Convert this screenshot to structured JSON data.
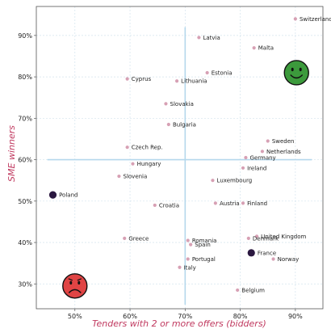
{
  "chart_data": {
    "type": "scatter",
    "xlabel": "Tenders with 2 or more offers (bidders)",
    "ylabel": "SME winners",
    "xlim": [
      43,
      95
    ],
    "ylim": [
      24,
      97
    ],
    "x_ticks": [
      50,
      60,
      70,
      80,
      90
    ],
    "y_ticks": [
      30,
      40,
      50,
      60,
      70,
      80,
      90
    ],
    "tick_suffix": "%",
    "grid": true,
    "reference_lines": {
      "x": 70,
      "y": 60
    },
    "colors": {
      "default": "#d7a0b4",
      "highlight": "#2b1840",
      "reference": "#b5d8ec",
      "good_face": "#3c9a3c",
      "bad_face": "#e04444",
      "accent": "#c0395f"
    },
    "points": [
      {
        "name": "Switzerland",
        "x": 90,
        "y": 94
      },
      {
        "name": "Latvia",
        "x": 72.5,
        "y": 89.5
      },
      {
        "name": "Malta",
        "x": 82.5,
        "y": 87
      },
      {
        "name": "Estonia",
        "x": 74,
        "y": 81
      },
      {
        "name": "Cyprus",
        "x": 59.5,
        "y": 79.5
      },
      {
        "name": "Lithuania",
        "x": 68.5,
        "y": 79
      },
      {
        "name": "Slovakia",
        "x": 66.5,
        "y": 73.5
      },
      {
        "name": "Bulgaria",
        "x": 67,
        "y": 68.5
      },
      {
        "name": "Sweden",
        "x": 85,
        "y": 64.5
      },
      {
        "name": "Czech Rep.",
        "x": 59.5,
        "y": 63
      },
      {
        "name": "Netherlands",
        "x": 84,
        "y": 62
      },
      {
        "name": "Germany",
        "x": 81,
        "y": 60.5
      },
      {
        "name": "Hungary",
        "x": 60.5,
        "y": 59
      },
      {
        "name": "Ireland",
        "x": 80.5,
        "y": 58
      },
      {
        "name": "Slovenia",
        "x": 58,
        "y": 56
      },
      {
        "name": "Luxembourg",
        "x": 75,
        "y": 55
      },
      {
        "name": "Poland",
        "x": 46,
        "y": 51.5,
        "highlight": true
      },
      {
        "name": "Croatia",
        "x": 64.5,
        "y": 49
      },
      {
        "name": "Austria",
        "x": 75.5,
        "y": 49.5
      },
      {
        "name": "Finland",
        "x": 80.5,
        "y": 49.5
      },
      {
        "name": "Greece",
        "x": 59,
        "y": 41
      },
      {
        "name": "Romania",
        "x": 70.5,
        "y": 40.5
      },
      {
        "name": "Spain",
        "x": 71,
        "y": 39.5
      },
      {
        "name": "United Kingdom",
        "x": 83,
        "y": 41.5
      },
      {
        "name": "Denmark",
        "x": 81.5,
        "y": 41
      },
      {
        "name": "France",
        "x": 82,
        "y": 37.5,
        "highlight": true
      },
      {
        "name": "Portugal",
        "x": 70.5,
        "y": 36
      },
      {
        "name": "Norway",
        "x": 86,
        "y": 36
      },
      {
        "name": "Italy",
        "x": 69,
        "y": 34
      },
      {
        "name": "Belgium",
        "x": 79.5,
        "y": 28.5
      }
    ],
    "faces": [
      {
        "mood": "happy",
        "x": 90.2,
        "y": 81
      },
      {
        "mood": "sad",
        "x": 50,
        "y": 29.5
      }
    ]
  }
}
